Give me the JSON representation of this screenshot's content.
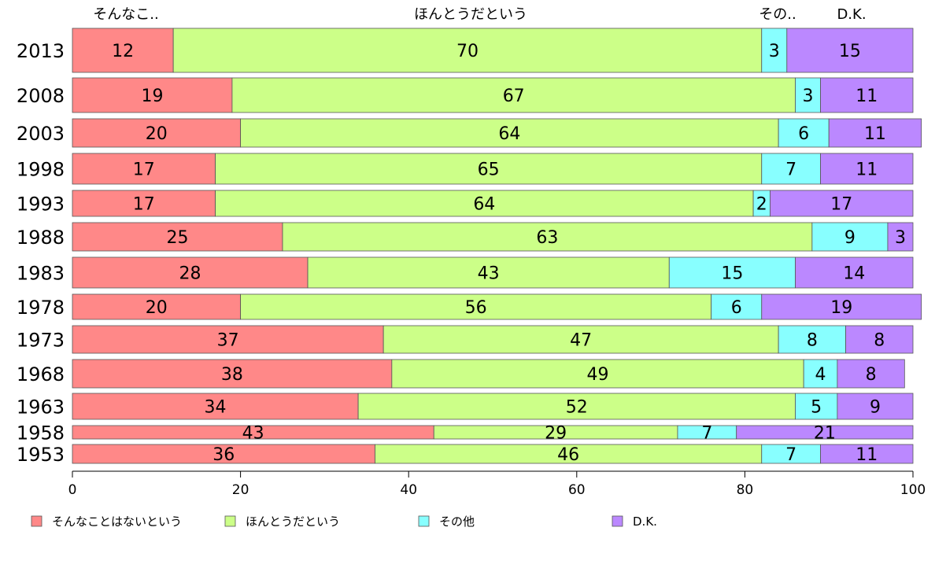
{
  "chart_data": {
    "type": "bar",
    "orientation": "horizontal",
    "stacked": true,
    "categories": [
      "2013",
      "2008",
      "2003",
      "1998",
      "1993",
      "1988",
      "1983",
      "1978",
      "1973",
      "1968",
      "1963",
      "1958",
      "1953"
    ],
    "series": [
      {
        "name": "そんなことはないという",
        "color": "#ff8888",
        "values": [
          12,
          19,
          20,
          17,
          17,
          25,
          28,
          20,
          37,
          38,
          34,
          43,
          36
        ]
      },
      {
        "name": "ほんとうだという",
        "color": "#ccff88",
        "values": [
          70,
          67,
          64,
          65,
          64,
          63,
          43,
          56,
          47,
          49,
          52,
          29,
          46
        ]
      },
      {
        "name": "その他",
        "color": "#88ffff",
        "values": [
          3,
          3,
          6,
          7,
          2,
          9,
          15,
          6,
          8,
          4,
          5,
          7,
          7
        ]
      },
      {
        "name": "D.K.",
        "color": "#bb88ff",
        "values": [
          15,
          11,
          11,
          11,
          17,
          3,
          14,
          19,
          8,
          8,
          9,
          21,
          11
        ]
      }
    ],
    "top_labels": [
      "そんなこ..",
      "ほんとうだという",
      "その..",
      "D.K."
    ],
    "xlim": [
      0,
      100
    ],
    "x_ticks": [
      "0",
      "20",
      "40",
      "60",
      "80",
      "100"
    ],
    "xlabel": "",
    "ylabel": "",
    "legend_position": "bottom",
    "grid": false
  }
}
